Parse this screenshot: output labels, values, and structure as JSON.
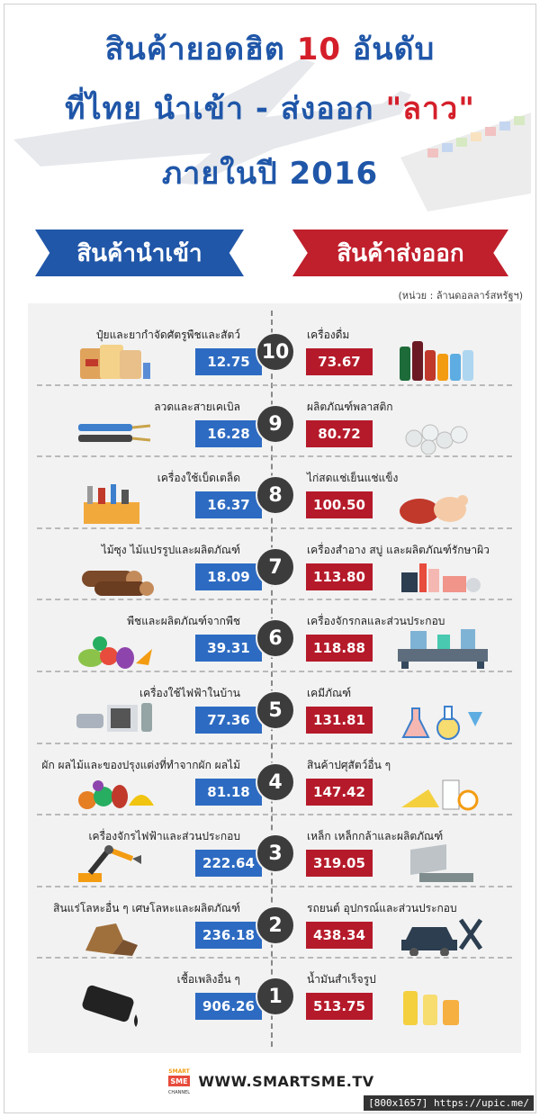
{
  "header": {
    "line1_a": "สินค้ายอดฮิต",
    "line1_b": "10",
    "line1_c": "อันดับ",
    "line2_a": "ที่ไทย นำเข้า - ส่งออก",
    "line2_b": "\"ลาว\"",
    "line3": "ภายในปี 2016"
  },
  "ribbons": {
    "import": "สินค้านำเข้า",
    "export": "สินค้าส่งออก"
  },
  "unit": "(หน่วย : ล้านดอลลาร์สหรัฐฯ)",
  "rows": [
    {
      "rank": "10",
      "import_label": "ปุ๋ยและยากำจัดศัตรูพืชและสัตว์",
      "import_value": "12.75",
      "export_label": "เครื่องดื่ม",
      "export_value": "73.67",
      "import_icon": "fertilizer-icon",
      "export_icon": "beverage-bottles-icon"
    },
    {
      "rank": "9",
      "import_label": "ลวดและสายเคเบิล",
      "import_value": "16.28",
      "export_label": "ผลิตภัณฑ์พลาสติก",
      "export_value": "80.72",
      "import_icon": "cable-icon",
      "export_icon": "plastic-pellets-icon"
    },
    {
      "rank": "8",
      "import_label": "เครื่องใช้เบ็ดเตล็ด",
      "import_value": "16.37",
      "export_label": "ไก่สดแช่เย็นแช่แข็ง",
      "export_value": "100.50",
      "import_icon": "toolbox-icon",
      "export_icon": "chicken-meat-icon"
    },
    {
      "rank": "7",
      "import_label": "ไม้ซุง ไม้แปรรูปและผลิตภัณฑ์",
      "import_value": "18.09",
      "export_label": "เครื่องสำอาง สบู่ และผลิตภัณฑ์รักษาผิว",
      "export_value": "113.80",
      "import_icon": "logs-icon",
      "export_icon": "cosmetics-icon"
    },
    {
      "rank": "6",
      "import_label": "พืชและผลิตภัณฑ์จากพืช",
      "import_value": "39.31",
      "export_label": "เครื่องจักรกลและส่วนประกอบ",
      "export_value": "118.88",
      "import_icon": "vegetables-icon",
      "export_icon": "factory-machine-icon"
    },
    {
      "rank": "5",
      "import_label": "เครื่องใช้ไฟฟ้าในบ้าน",
      "import_value": "77.36",
      "export_label": "เคมีภัณฑ์",
      "export_value": "131.81",
      "import_icon": "appliances-icon",
      "export_icon": "chemical-flasks-icon"
    },
    {
      "rank": "4",
      "import_label": "ผัก ผลไม้และของปรุงแต่งที่ทำจากผัก ผลไม้",
      "import_value": "81.18",
      "export_label": "สินค้าปศุสัตว์อื่น ๆ",
      "export_value": "147.42",
      "import_icon": "fruits-icon",
      "export_icon": "dairy-products-icon"
    },
    {
      "rank": "3",
      "import_label": "เครื่องจักรไฟฟ้าและส่วนประกอบ",
      "import_value": "222.64",
      "export_label": "เหล็ก เหล็กกล้าและผลิตภัณฑ์",
      "export_value": "319.05",
      "import_icon": "robot-arm-icon",
      "export_icon": "steel-beams-icon"
    },
    {
      "rank": "2",
      "import_label": "สินแร่โลหะอื่น ๆ เศษโลหะและผลิตภัณฑ์",
      "import_value": "236.18",
      "export_label": "รถยนต์ อุปกรณ์และส่วนประกอบ",
      "export_value": "438.34",
      "import_icon": "ore-rocks-icon",
      "export_icon": "car-repair-icon"
    },
    {
      "rank": "1",
      "import_label": "เชื้อเพลิงอื่น ๆ",
      "import_value": "906.26",
      "export_label": "น้ำมันสำเร็จรูป",
      "export_value": "513.75",
      "import_icon": "oil-barrel-icon",
      "export_icon": "oil-bottles-icon"
    }
  ],
  "footer": {
    "logo_text_1": "SMART",
    "logo_text_2": "SME",
    "logo_text_3": "CHANNEL",
    "site": "WWW.SMARTSME.TV"
  },
  "credit": "[800x1657] https://upic.me/"
}
